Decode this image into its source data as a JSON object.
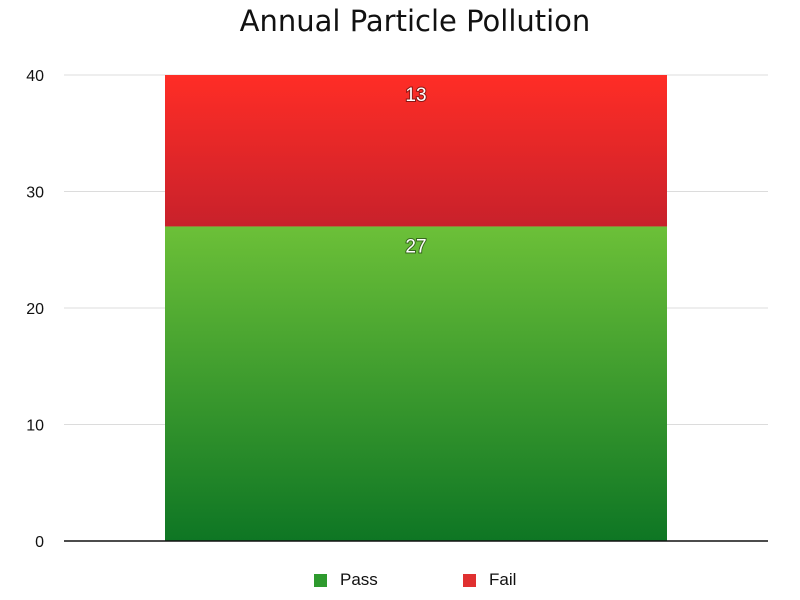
{
  "chart_data": {
    "type": "bar",
    "stacked": true,
    "title": "Annual Particle Pollution",
    "categories": [
      ""
    ],
    "series": [
      {
        "name": "Pass",
        "values": [
          27
        ],
        "color": "#2e9a2e",
        "gradient": [
          "#6cc038",
          "#0e7624"
        ]
      },
      {
        "name": "Fail",
        "values": [
          13
        ],
        "color": "#e03030",
        "gradient": [
          "#ff2d26",
          "#c8212b"
        ]
      }
    ],
    "ylim": [
      0,
      40
    ],
    "yticks": [
      0,
      10,
      20,
      30,
      40
    ],
    "ytick_labels": [
      "0",
      "10",
      "20",
      "30",
      "40"
    ],
    "grid": true,
    "legend_position": "bottom"
  }
}
